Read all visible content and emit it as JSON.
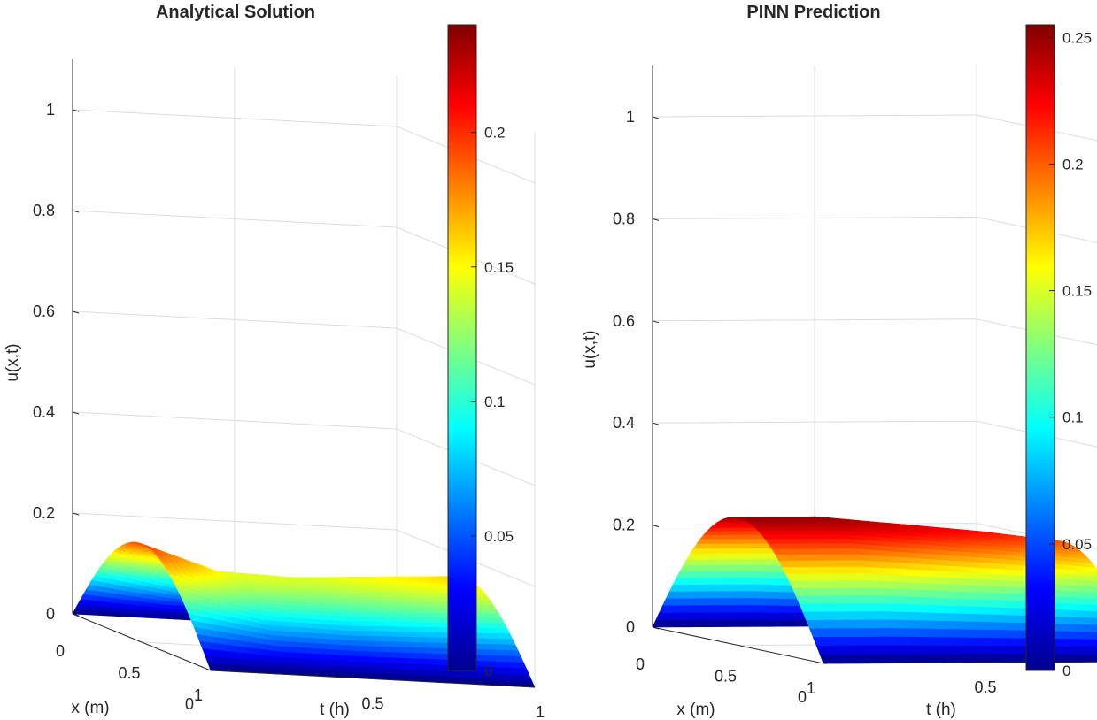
{
  "figure": {
    "colors": {
      "axis": "#262626",
      "grid": "#dcdcdc",
      "background": "#ffffff"
    },
    "colormap": "jet"
  },
  "chart_data": [
    {
      "type": "surface",
      "title": "Analytical Solution",
      "xlabel": "x (m)",
      "ylabel": "t (h)",
      "zlabel": "u(x,t)",
      "x_ticks": [
        "0",
        "0.5",
        "1"
      ],
      "t_ticks": [
        "0",
        "0.5",
        "1"
      ],
      "z_ticks": [
        "0",
        "0.2",
        "0.4",
        "0.6",
        "0.8",
        "1"
      ],
      "xlim": [
        0,
        1
      ],
      "tlim": [
        0,
        1
      ],
      "zlim": [
        0,
        1.1
      ],
      "grid": true,
      "surface": {
        "function": "u(x,t) = A(t) * sin(pi*x)",
        "peak_profile_t": [
          0,
          0.25,
          0.5,
          0.75,
          1
        ],
        "peak_profile_u": [
          0.195,
          0.145,
          0.14,
          0.15,
          0.16
        ]
      },
      "colorbar": {
        "range": [
          0,
          0.24
        ],
        "ticks": [
          "0",
          "0.05",
          "0.1",
          "0.15",
          "0.2"
        ]
      }
    },
    {
      "type": "surface",
      "title": "PINN Prediction",
      "xlabel": "x (m)",
      "ylabel": "t (h)",
      "zlabel": "u(x,t)",
      "x_ticks": [
        "0",
        "0.5",
        "1"
      ],
      "t_ticks": [
        "0",
        "0.5",
        "1"
      ],
      "z_ticks": [
        "0",
        "0.2",
        "0.4",
        "0.6",
        "0.8",
        "1"
      ],
      "xlim": [
        0,
        1
      ],
      "tlim": [
        0,
        1
      ],
      "zlim": [
        0,
        1.1
      ],
      "grid": true,
      "surface": {
        "function": "u(x,t) = A(t) * sin(pi*x)",
        "peak_profile_t": [
          0,
          0.25,
          0.5,
          0.75,
          1
        ],
        "peak_profile_u": [
          0.25,
          0.25,
          0.235,
          0.22,
          0.2
        ]
      },
      "colorbar": {
        "range": [
          0,
          0.255
        ],
        "ticks": [
          "0",
          "0.05",
          "0.1",
          "0.15",
          "0.2",
          "0.25"
        ]
      }
    }
  ]
}
